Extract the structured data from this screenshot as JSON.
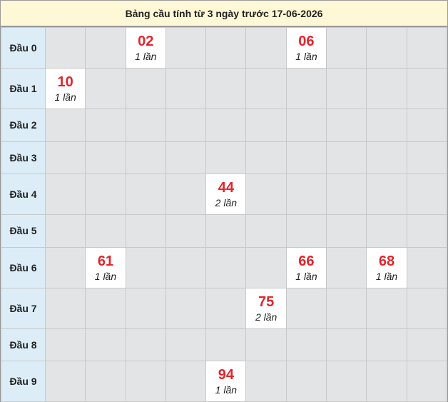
{
  "header": {
    "title": "Bảng cầu tính từ 3 ngày trước 17-06-2026"
  },
  "table": {
    "rows": [
      {
        "label": "Đầu 0",
        "cells": [
          null,
          null,
          {
            "number": "02",
            "count": "1 lần"
          },
          null,
          null,
          null,
          {
            "number": "06",
            "count": "1 lần"
          },
          null,
          null,
          null
        ]
      },
      {
        "label": "Đầu 1",
        "cells": [
          {
            "number": "10",
            "count": "1 lần"
          },
          null,
          null,
          null,
          null,
          null,
          null,
          null,
          null,
          null
        ]
      },
      {
        "label": "Đầu 2",
        "cells": [
          null,
          null,
          null,
          null,
          null,
          null,
          null,
          null,
          null,
          null
        ]
      },
      {
        "label": "Đầu 3",
        "cells": [
          null,
          null,
          null,
          null,
          null,
          null,
          null,
          null,
          null,
          null
        ]
      },
      {
        "label": "Đầu 4",
        "cells": [
          null,
          null,
          null,
          null,
          {
            "number": "44",
            "count": "2 lần"
          },
          null,
          null,
          null,
          null,
          null
        ]
      },
      {
        "label": "Đầu 5",
        "cells": [
          null,
          null,
          null,
          null,
          null,
          null,
          null,
          null,
          null,
          null
        ]
      },
      {
        "label": "Đầu 6",
        "cells": [
          null,
          {
            "number": "61",
            "count": "1 lần"
          },
          null,
          null,
          null,
          null,
          {
            "number": "66",
            "count": "1 lần"
          },
          null,
          {
            "number": "68",
            "count": "1 lần"
          },
          null
        ]
      },
      {
        "label": "Đầu 7",
        "cells": [
          null,
          null,
          null,
          null,
          null,
          {
            "number": "75",
            "count": "2 lần"
          },
          null,
          null,
          null,
          null
        ]
      },
      {
        "label": "Đầu 8",
        "cells": [
          null,
          null,
          null,
          null,
          null,
          null,
          null,
          null,
          null,
          null
        ]
      },
      {
        "label": "Đầu 9",
        "cells": [
          null,
          null,
          null,
          null,
          {
            "number": "94",
            "count": "1 lần"
          },
          null,
          null,
          null,
          null,
          null
        ]
      }
    ]
  }
}
